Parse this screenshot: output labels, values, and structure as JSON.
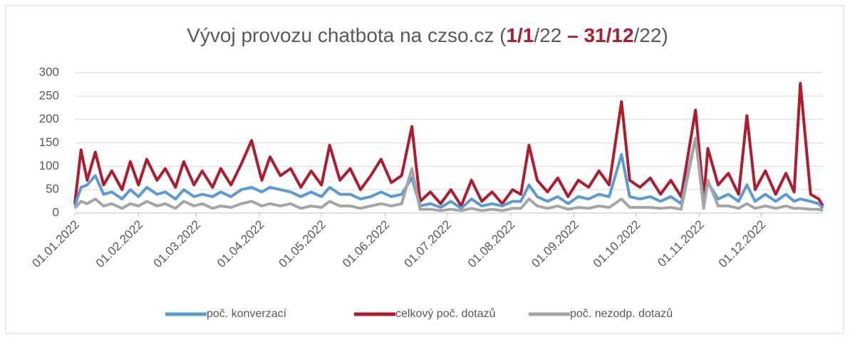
{
  "chart_data": {
    "type": "line",
    "title": [
      "Vývoj provozu chatbota na czso.cz (",
      "1/1",
      "/22 ",
      "– 31/12",
      "/22)"
    ],
    "title_highlight": [
      1,
      3
    ],
    "title_highlight_color": "#b01c2e",
    "x": [
      "01.01.2022",
      "04.01.2022",
      "07.01.2022",
      "11.01.2022",
      "15.01.2022",
      "19.01.2022",
      "24.01.2022",
      "28.01.2022",
      "01.02.2022",
      "05.02.2022",
      "10.02.2022",
      "14.02.2022",
      "19.02.2022",
      "23.02.2022",
      "28.02.2022",
      "04.03.2022",
      "09.03.2022",
      "13.03.2022",
      "18.03.2022",
      "23.03.2022",
      "28.03.2022",
      "02.04.2022",
      "06.04.2022",
      "11.04.2022",
      "16.04.2022",
      "21.04.2022",
      "26.04.2022",
      "01.05.2022",
      "05.05.2022",
      "10.05.2022",
      "15.05.2022",
      "20.05.2022",
      "25.05.2022",
      "30.05.2022",
      "04.06.2022",
      "09.06.2022",
      "14.06.2022",
      "18.06.2022",
      "23.06.2022",
      "28.06.2022",
      "03.07.2022",
      "08.07.2022",
      "13.07.2022",
      "18.07.2022",
      "23.07.2022",
      "28.07.2022",
      "02.08.2022",
      "06.08.2022",
      "10.08.2022",
      "14.08.2022",
      "19.08.2022",
      "24.08.2022",
      "29.08.2022",
      "03.09.2022",
      "08.09.2022",
      "13.09.2022",
      "18.09.2022",
      "24.09.2022",
      "28.09.2022",
      "03.10.2022",
      "08.10.2022",
      "13.10.2022",
      "18.10.2022",
      "23.10.2022",
      "30.10.2022",
      "03.11.2022",
      "05.11.2022",
      "10.11.2022",
      "15.11.2022",
      "20.11.2022",
      "24.11.2022",
      "28.11.2022",
      "03.12.2022",
      "08.12.2022",
      "13.12.2022",
      "17.12.2022",
      "20.12.2022",
      "25.12.2022",
      "29.12.2022",
      "31.12.2022"
    ],
    "series": [
      {
        "name": "poč. konverzací",
        "color": "#5b9bd5",
        "values": [
          15,
          55,
          60,
          80,
          40,
          45,
          30,
          50,
          35,
          55,
          40,
          45,
          30,
          50,
          35,
          40,
          35,
          45,
          35,
          50,
          55,
          45,
          55,
          50,
          45,
          35,
          45,
          35,
          55,
          40,
          40,
          30,
          35,
          45,
          35,
          40,
          75,
          15,
          20,
          12,
          25,
          10,
          30,
          15,
          20,
          15,
          25,
          25,
          60,
          35,
          25,
          35,
          20,
          35,
          30,
          40,
          35,
          125,
          35,
          30,
          35,
          25,
          35,
          20,
          160,
          20,
          65,
          30,
          40,
          25,
          60,
          25,
          40,
          25,
          40,
          25,
          30,
          25,
          20,
          10
        ]
      },
      {
        "name": "celkový poč. dotazů",
        "color": "#b01c2e",
        "values": [
          20,
          135,
          70,
          130,
          60,
          90,
          50,
          110,
          60,
          115,
          70,
          95,
          55,
          110,
          60,
          90,
          55,
          95,
          60,
          105,
          155,
          70,
          120,
          80,
          95,
          55,
          90,
          60,
          145,
          70,
          95,
          50,
          80,
          115,
          65,
          80,
          185,
          25,
          45,
          20,
          50,
          15,
          70,
          25,
          45,
          20,
          50,
          40,
          145,
          70,
          45,
          75,
          35,
          70,
          55,
          90,
          60,
          238,
          70,
          55,
          75,
          40,
          70,
          35,
          220,
          30,
          138,
          60,
          85,
          40,
          208,
          50,
          90,
          40,
          85,
          45,
          277,
          40,
          30,
          15
        ]
      },
      {
        "name": "poč. nezodp. dotazů",
        "color": "#a5a5a5",
        "values": [
          10,
          25,
          20,
          30,
          15,
          20,
          10,
          20,
          15,
          25,
          15,
          20,
          10,
          25,
          15,
          20,
          10,
          15,
          12,
          20,
          25,
          15,
          20,
          15,
          20,
          10,
          15,
          12,
          25,
          15,
          15,
          10,
          15,
          20,
          15,
          20,
          95,
          8,
          8,
          5,
          8,
          5,
          10,
          5,
          8,
          5,
          10,
          10,
          30,
          15,
          10,
          15,
          8,
          12,
          10,
          15,
          12,
          30,
          12,
          12,
          12,
          10,
          12,
          8,
          160,
          10,
          70,
          15,
          15,
          10,
          20,
          10,
          15,
          10,
          15,
          10,
          10,
          8,
          8,
          5
        ]
      }
    ],
    "xlim": [
      "01.01.2022",
      "31.12.2022"
    ],
    "xticks": [
      "01.01.2022",
      "01.02.2022",
      "01.03.2022",
      "01.04.2022",
      "01.05.2022",
      "01.06.2022",
      "01.07.2022",
      "01.08.2022",
      "01.09.2022",
      "01.10.2022",
      "01.11.2022",
      "01.12.2022"
    ],
    "ylim": [
      0,
      300
    ],
    "yticks": [
      0,
      50,
      100,
      150,
      200,
      250,
      300
    ],
    "grid": true,
    "legend": "bottom"
  }
}
